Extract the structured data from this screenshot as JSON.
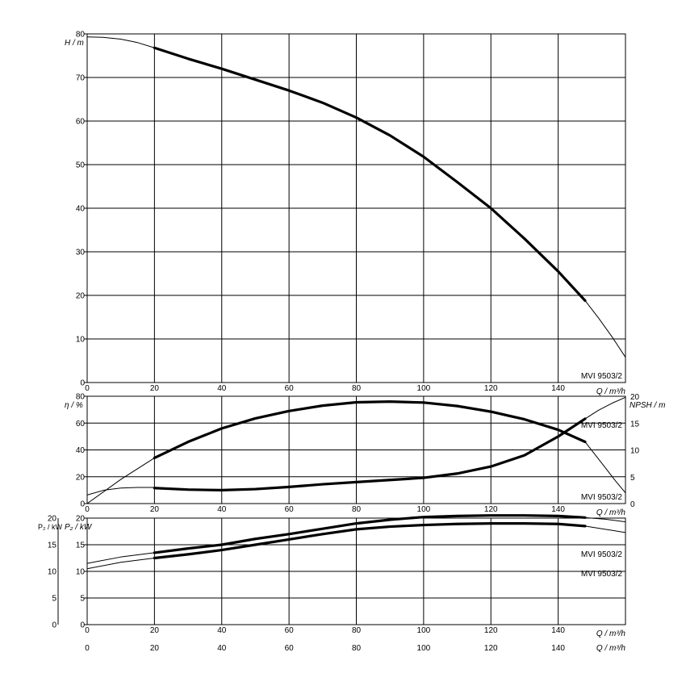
{
  "chart_data": [
    {
      "id": "head",
      "type": "line",
      "xlabel": "Q / m³/h",
      "ylabel": "H / m",
      "xlim": [
        0,
        160
      ],
      "ylim": [
        0,
        80
      ],
      "x_ticks": [
        "0",
        "20",
        "40",
        "60",
        "80",
        "100",
        "120",
        "140"
      ],
      "y_ticks": [
        "0",
        "10",
        "20",
        "30",
        "40",
        "50",
        "60",
        "70",
        "80"
      ],
      "grid": true,
      "curve_label": "MVI 9503/2",
      "series": [
        {
          "name": "MVI 9503/2",
          "style": "thin",
          "x": [
            0,
            5,
            10,
            15,
            20
          ],
          "y": [
            79.3,
            79.2,
            78.8,
            78.0,
            76.8
          ]
        },
        {
          "name": "MVI 9503/2",
          "style": "bold",
          "x": [
            20,
            30,
            40,
            50,
            60,
            70,
            80,
            90,
            100,
            110,
            120,
            130,
            140,
            148
          ],
          "y": [
            76.8,
            74.3,
            72.0,
            69.5,
            67.0,
            64.2,
            60.8,
            56.7,
            51.8,
            46.0,
            40.0,
            33.0,
            25.5,
            18.8
          ]
        },
        {
          "name": "MVI 9503/2",
          "style": "thin",
          "x": [
            148,
            152,
            156,
            160
          ],
          "y": [
            18.8,
            14.8,
            10.5,
            5.8
          ]
        }
      ]
    },
    {
      "id": "efficiency_npsh",
      "type": "line",
      "xlabel": "Q / m³/h",
      "ylabel": "η / %",
      "y2label": "NPSH / m",
      "xlim": [
        0,
        160
      ],
      "ylim": [
        0,
        80
      ],
      "y2lim": [
        0,
        20
      ],
      "x_ticks": [
        "0",
        "20",
        "40",
        "60",
        "80",
        "100",
        "120",
        "140"
      ],
      "y_ticks": [
        "0",
        "20",
        "40",
        "60",
        "80"
      ],
      "y2_ticks": [
        "0",
        "5",
        "10",
        "15",
        "20"
      ],
      "grid": true,
      "curve_label_top": "MVI 9503/2",
      "curve_label_bottom": "MVI 9503/2",
      "series": [
        {
          "name": "MVI 9503/2",
          "axis": "left",
          "style": "thin",
          "x": [
            0,
            10,
            20
          ],
          "y": [
            0,
            18,
            34
          ]
        },
        {
          "name": "MVI 9503/2",
          "axis": "left",
          "style": "bold",
          "x": [
            20,
            30,
            40,
            50,
            60,
            70,
            80,
            90,
            100,
            110,
            120,
            130,
            140,
            148
          ],
          "y": [
            34,
            46,
            56,
            63.5,
            69,
            73,
            75.5,
            76,
            75.3,
            72.7,
            68.5,
            62.8,
            55,
            46
          ]
        },
        {
          "name": "MVI 9503/2",
          "axis": "left",
          "style": "thin",
          "x": [
            148,
            153,
            157,
            160
          ],
          "y": [
            46,
            30,
            17,
            8
          ]
        },
        {
          "name": "MVI 9503/2",
          "axis": "right",
          "style": "thin",
          "x": [
            0,
            5,
            10,
            15,
            20
          ],
          "y": [
            1.6,
            2.5,
            2.9,
            3.0,
            3.0
          ]
        },
        {
          "name": "MVI 9503/2",
          "axis": "right",
          "style": "bold",
          "x": [
            20,
            30,
            40,
            50,
            60,
            70,
            80,
            90,
            100,
            110,
            120,
            130,
            140,
            148
          ],
          "y": [
            2.9,
            2.6,
            2.5,
            2.7,
            3.1,
            3.6,
            4.0,
            4.4,
            4.8,
            5.6,
            6.9,
            9.0,
            12.5,
            15.8
          ]
        },
        {
          "name": "MVI 9503/2",
          "axis": "right",
          "style": "thin",
          "x": [
            148,
            152,
            156,
            160
          ],
          "y": [
            15.8,
            17.4,
            18.7,
            19.8
          ]
        }
      ]
    },
    {
      "id": "power",
      "type": "line",
      "xlabel": "Q / m³/h",
      "ylabel": "P₂ / kW",
      "y_outer_label": "P₂ / kW",
      "xlim": [
        0,
        160
      ],
      "ylim": [
        0,
        20
      ],
      "x_ticks": [
        "0",
        "20",
        "40",
        "60",
        "80",
        "100",
        "120",
        "140"
      ],
      "y_ticks": [
        "0",
        "5",
        "10",
        "15",
        "20"
      ],
      "grid": true,
      "curve_label_top": "MVI 9503/2",
      "curve_label_bottom": "MVI 9503/2",
      "series": [
        {
          "name": "MVI 9503/2",
          "style": "thin",
          "x": [
            0,
            10,
            20
          ],
          "y": [
            11.5,
            12.7,
            13.5
          ]
        },
        {
          "name": "MVI 9503/2",
          "style": "bold",
          "x": [
            20,
            30,
            40,
            50,
            60,
            70,
            80,
            90,
            100,
            110,
            120,
            130,
            140,
            148
          ],
          "y": [
            13.5,
            14.3,
            15.0,
            16.1,
            17.0,
            18.0,
            19.0,
            19.7,
            20.2,
            20.4,
            20.5,
            20.5,
            20.4,
            20.1
          ]
        },
        {
          "name": "MVI 9503/2",
          "style": "thin",
          "x": [
            148,
            154,
            160
          ],
          "y": [
            20.1,
            19.8,
            19.3
          ]
        },
        {
          "name": "MVI 9503/2",
          "style": "thin",
          "x": [
            0,
            10,
            20
          ],
          "y": [
            10.5,
            11.7,
            12.5
          ]
        },
        {
          "name": "MVI 9503/2",
          "style": "bold",
          "x": [
            20,
            30,
            40,
            50,
            60,
            70,
            80,
            90,
            100,
            110,
            120,
            130,
            140,
            148
          ],
          "y": [
            12.5,
            13.2,
            14.0,
            15.0,
            16.0,
            17.0,
            17.9,
            18.4,
            18.7,
            18.9,
            19.0,
            19.0,
            18.9,
            18.5
          ]
        },
        {
          "name": "MVI 9503/2",
          "style": "thin",
          "x": [
            148,
            154,
            160
          ],
          "y": [
            18.5,
            17.9,
            17.3
          ]
        }
      ]
    }
  ],
  "bottom_axis": {
    "xlabel": "Q / m³/h",
    "x_ticks": [
      "0",
      "20",
      "40",
      "60",
      "80",
      "100",
      "120",
      "140"
    ]
  }
}
